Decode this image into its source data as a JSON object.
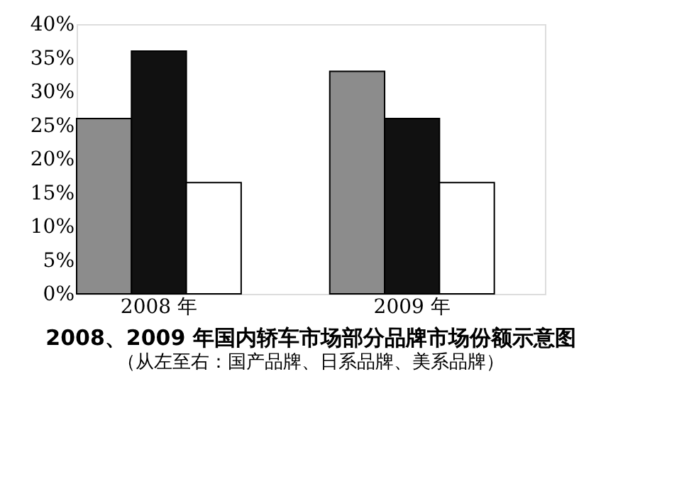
{
  "chart_data": {
    "type": "bar",
    "title": "2008、2009 年国内轿车市场部分品牌市场份额示意图",
    "subtitle": "（从左至右：国产品牌、日系品牌、美系品牌）",
    "categories": [
      "2008 年",
      "2009 年"
    ],
    "series": [
      {
        "color": "#8c8c8c",
        "values": [
          26,
          33
        ]
      },
      {
        "color": "#111111",
        "values": [
          36,
          26
        ]
      },
      {
        "color": "#ffffff",
        "values": [
          16.5,
          16.5
        ]
      }
    ],
    "ylim": [
      0,
      40
    ],
    "yticks": [
      {
        "value": 0,
        "label": "0%"
      },
      {
        "value": 5,
        "label": "5%"
      },
      {
        "value": 10,
        "label": "10%"
      },
      {
        "value": 15,
        "label": "15%"
      },
      {
        "value": 20,
        "label": "20%"
      },
      {
        "value": 25,
        "label": "25%"
      },
      {
        "value": 30,
        "label": "30%"
      },
      {
        "value": 35,
        "label": "35%"
      },
      {
        "value": 40,
        "label": "40%"
      }
    ],
    "grid": false,
    "legend": false
  }
}
